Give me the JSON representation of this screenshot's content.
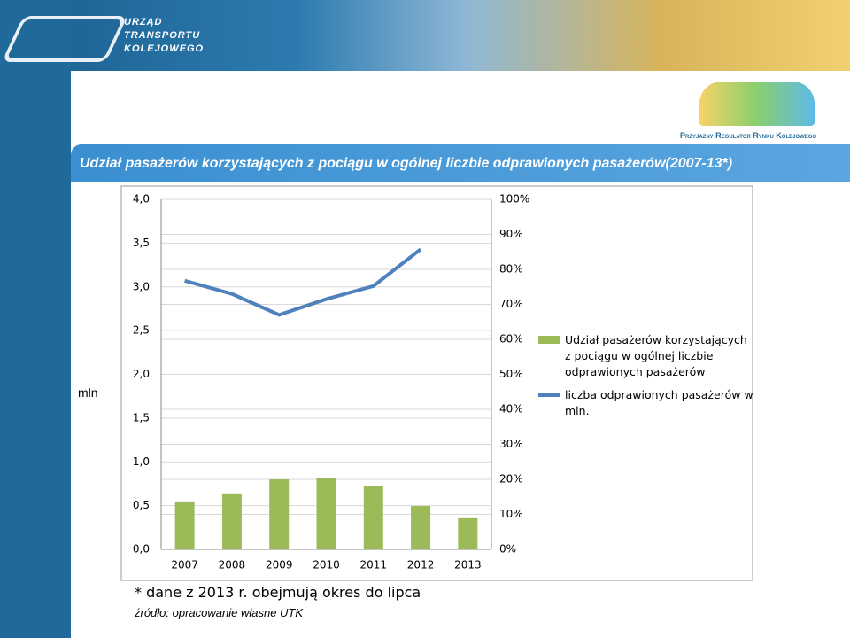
{
  "header": {
    "logo_lines": [
      "URZĄD",
      "TRANSPORTU",
      "KOLEJOWEGO"
    ],
    "badge": "Przyjazny Regulator Rynku Kolejowego"
  },
  "chart_data": {
    "type": "combo",
    "title": "Udział pasażerów korzystających z pociągu w ogólnej liczbie odprawionych pasażerów(2007-13*)",
    "ylabel": "mln",
    "categories": [
      "2007",
      "2008",
      "2009",
      "2010",
      "2011",
      "2012",
      "2013"
    ],
    "series": [
      {
        "name": "Udział pasażerów korzystających z pociągu w ogólnej liczbie odprawionych pasażerów",
        "type": "bar",
        "axis": "y2",
        "color": "#9bbb59",
        "values": [
          13.7,
          16,
          20,
          20.3,
          18,
          12.4,
          8.9
        ]
      },
      {
        "name": "liczba odprawionych pasażerów w mln.",
        "type": "line",
        "axis": "y",
        "color": "#4f81bd",
        "values": [
          3.07,
          2.92,
          2.68,
          2.86,
          3.01,
          3.43,
          null
        ]
      }
    ],
    "ylim": [
      0,
      4
    ],
    "yticks": [
      {
        "value": 0,
        "label": "0,0"
      },
      {
        "value": 0.5,
        "label": "0,5"
      },
      {
        "value": 1,
        "label": "1,0"
      },
      {
        "value": 1.5,
        "label": "1,5"
      },
      {
        "value": 2,
        "label": "2,0"
      },
      {
        "value": 2.5,
        "label": "2,5"
      },
      {
        "value": 3,
        "label": "3,0"
      },
      {
        "value": 3.5,
        "label": "3,5"
      },
      {
        "value": 4,
        "label": "4,0"
      }
    ],
    "y2lim": [
      0,
      100
    ],
    "y2ticks": [
      {
        "value": 0,
        "label": "0%"
      },
      {
        "value": 10,
        "label": "10%"
      },
      {
        "value": 20,
        "label": "20%"
      },
      {
        "value": 30,
        "label": "30%"
      },
      {
        "value": 40,
        "label": "40%"
      },
      {
        "value": 50,
        "label": "50%"
      },
      {
        "value": 60,
        "label": "60%"
      },
      {
        "value": 70,
        "label": "70%"
      },
      {
        "value": 80,
        "label": "80%"
      },
      {
        "value": 90,
        "label": "90%"
      },
      {
        "value": 100,
        "label": "100%"
      }
    ],
    "grid": true,
    "legend": "right"
  },
  "notes": [
    "* dane z 2013 r. obejmują okres do lipca",
    "źródło: opracowanie własne UTK"
  ]
}
